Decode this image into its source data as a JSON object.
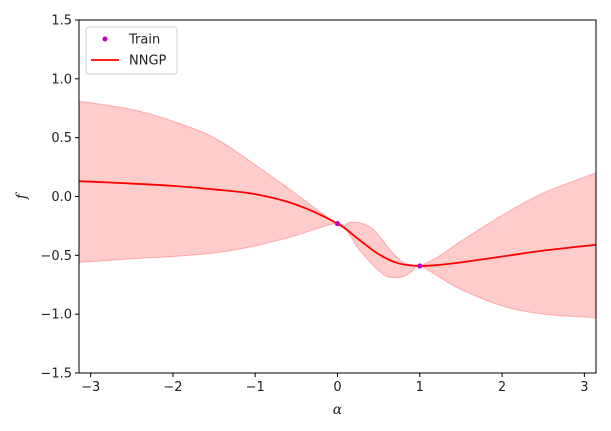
{
  "chart_data": {
    "type": "line",
    "title": "",
    "xlabel": "α",
    "ylabel": "f",
    "xlim": [
      -3.14159,
      3.14159
    ],
    "ylim": [
      -1.5,
      1.5
    ],
    "xticks": [
      -3,
      -2,
      -1,
      0,
      1,
      2,
      3
    ],
    "xtick_labels": [
      "−3",
      "−2",
      "−1",
      "0",
      "1",
      "2",
      "3"
    ],
    "yticks": [
      -1.5,
      -1.0,
      -0.5,
      0.0,
      0.5,
      1.0,
      1.5
    ],
    "ytick_labels": [
      "−1.5",
      "−1.0",
      "−0.5",
      "0.0",
      "0.5",
      "1.0",
      "1.5"
    ],
    "grid": false,
    "legend": {
      "position": "top-left",
      "entries": [
        {
          "label": "Train",
          "marker": "dot",
          "color": "#c000c0"
        },
        {
          "label": "NNGP",
          "marker": "line",
          "color": "#ff0000"
        }
      ]
    },
    "series": [
      {
        "name": "Train",
        "kind": "scatter",
        "color": "#c000c0",
        "x": [
          0.0,
          1.0
        ],
        "y": [
          -0.23,
          -0.59
        ]
      },
      {
        "name": "NNGP",
        "kind": "line",
        "color": "#ff0000",
        "x": [
          -3.14,
          -2.5,
          -2.0,
          -1.5,
          -1.0,
          -0.5,
          0.0,
          0.25,
          0.5,
          0.75,
          1.0,
          1.25,
          1.5,
          2.0,
          2.5,
          3.14
        ],
        "y": [
          0.13,
          0.11,
          0.09,
          0.06,
          0.02,
          -0.07,
          -0.23,
          -0.36,
          -0.49,
          -0.57,
          -0.59,
          -0.58,
          -0.56,
          -0.51,
          -0.46,
          -0.41
        ]
      },
      {
        "name": "NNGP band",
        "kind": "band",
        "color": "#ff0000",
        "x": [
          -3.14,
          -2.5,
          -2.0,
          -1.5,
          -1.0,
          -0.5,
          0.0,
          0.15,
          0.25,
          0.4,
          0.5,
          0.6,
          0.7,
          0.8,
          0.9,
          1.0,
          1.25,
          1.5,
          2.0,
          2.5,
          3.14
        ],
        "upper": [
          0.81,
          0.74,
          0.64,
          0.5,
          0.27,
          0.02,
          -0.23,
          -0.22,
          -0.22,
          -0.26,
          -0.33,
          -0.42,
          -0.5,
          -0.56,
          -0.58,
          -0.59,
          -0.5,
          -0.38,
          -0.16,
          0.03,
          0.2
        ],
        "lower": [
          -0.56,
          -0.53,
          -0.51,
          -0.48,
          -0.42,
          -0.33,
          -0.23,
          -0.33,
          -0.44,
          -0.56,
          -0.63,
          -0.68,
          -0.69,
          -0.68,
          -0.64,
          -0.59,
          -0.69,
          -0.79,
          -0.93,
          -1.0,
          -1.03
        ]
      }
    ]
  }
}
